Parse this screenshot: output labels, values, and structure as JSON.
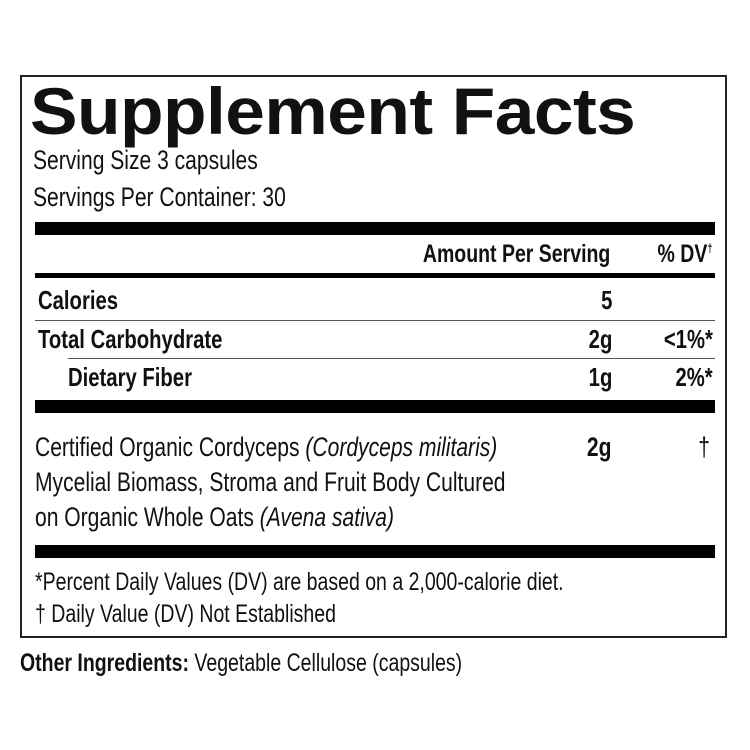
{
  "title": "Supplement Facts",
  "serving_size": "Serving Size 3 capsules",
  "servings_per_container": "Servings Per Container: 30",
  "header": {
    "amount": "Amount Per Serving",
    "dv": "% DV",
    "dv_mark": "†"
  },
  "rows": [
    {
      "name": "Calories",
      "amount": "5",
      "dv": ""
    },
    {
      "name": "Total Carbohydrate",
      "amount": "2g",
      "dv": "<1%*"
    },
    {
      "name": "Dietary Fiber",
      "amount": "1g",
      "dv": "2%*"
    }
  ],
  "ingredient": {
    "line1": "Certified Organic Cordyceps ",
    "line1_italic": "(Cordyceps militaris)",
    "line2": "Mycelial Biomass, Stroma and Fruit Body Cultured",
    "line3": "on Organic Whole Oats ",
    "line3_italic": "(Avena sativa)",
    "amount": "2g",
    "dv": "†"
  },
  "footnotes": [
    "*Percent Daily Values (DV) are based on a 2,000-calorie diet.",
    "† Daily Value (DV) Not Established"
  ],
  "other_ingredients": {
    "label": "Other Ingredients:",
    "value": " Vegetable Cellulose (capsules)"
  }
}
